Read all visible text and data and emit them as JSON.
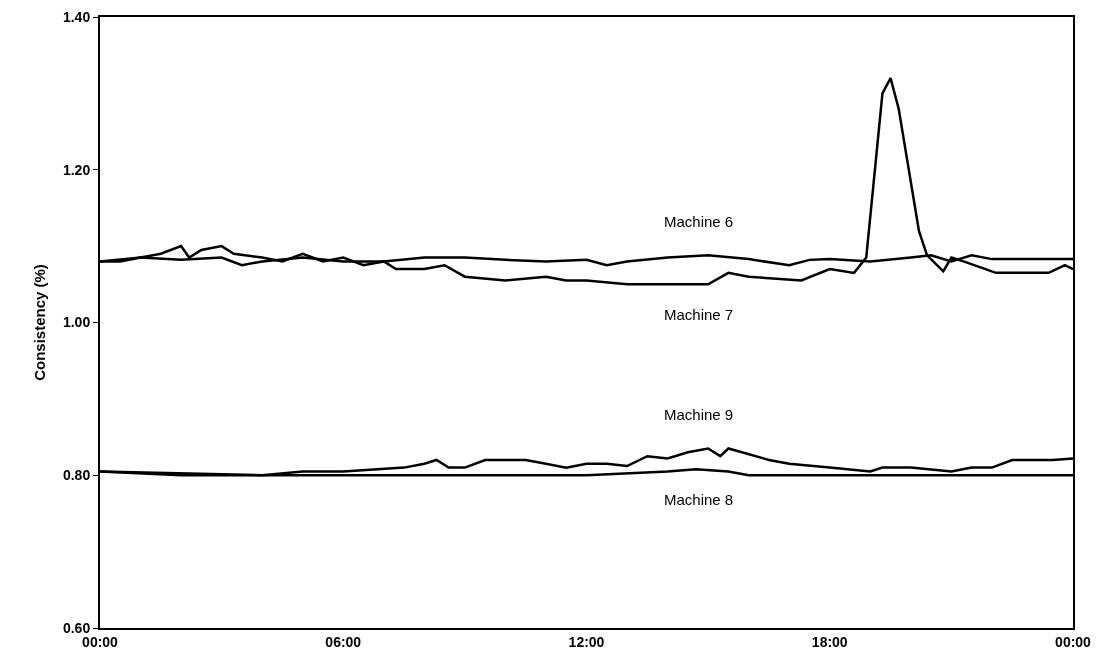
{
  "chart_data": {
    "type": "line",
    "ylabel": "Consistency (%)",
    "xlim": [
      0,
      24
    ],
    "xticks": [
      {
        "value": 0,
        "label": "00:00"
      },
      {
        "value": 6,
        "label": "06:00"
      },
      {
        "value": 12,
        "label": "12:00"
      },
      {
        "value": 18,
        "label": "18:00"
      },
      {
        "value": 24,
        "label": "00:00"
      }
    ],
    "ylim": [
      0.6,
      1.4
    ],
    "yticks": [
      {
        "value": 0.6,
        "label": "0.60"
      },
      {
        "value": 0.8,
        "label": "0.80"
      },
      {
        "value": 1.0,
        "label": "1.00"
      },
      {
        "value": 1.2,
        "label": "1.20"
      },
      {
        "value": 1.4,
        "label": "1.40"
      }
    ],
    "grid": false,
    "legend": false,
    "marker": "none",
    "line_style": "solid",
    "series": [
      {
        "name": "Machine 6",
        "color": "#000000",
        "x": [
          0,
          1,
          2,
          3,
          3.5,
          4,
          5,
          6,
          7,
          8,
          9,
          10,
          11,
          12,
          12.5,
          13,
          14,
          15,
          16,
          17,
          17.5,
          18,
          19,
          20,
          20.5,
          21,
          21.5,
          22,
          23,
          24
        ],
        "values": [
          1.08,
          1.085,
          1.082,
          1.085,
          1.075,
          1.08,
          1.085,
          1.08,
          1.08,
          1.085,
          1.085,
          1.082,
          1.08,
          1.082,
          1.075,
          1.08,
          1.085,
          1.088,
          1.083,
          1.075,
          1.082,
          1.083,
          1.08,
          1.085,
          1.088,
          1.08,
          1.088,
          1.083,
          1.083,
          1.083
        ]
      },
      {
        "name": "Machine 7",
        "color": "#000000",
        "x": [
          0,
          0.5,
          1,
          1.5,
          2,
          2.2,
          2.5,
          3,
          3.3,
          4,
          4.5,
          5,
          5.5,
          6,
          6.5,
          7,
          7.3,
          8,
          8.5,
          9,
          10,
          11,
          11.5,
          12,
          13,
          14,
          15,
          15.5,
          16,
          17.3,
          18,
          18.6,
          18.9,
          19.3,
          19.5,
          19.7,
          20.2,
          20.4,
          20.8,
          21,
          21.3,
          22.1,
          23.4,
          23.8,
          24
        ],
        "values": [
          1.08,
          1.08,
          1.085,
          1.09,
          1.1,
          1.085,
          1.095,
          1.1,
          1.09,
          1.085,
          1.08,
          1.09,
          1.08,
          1.085,
          1.075,
          1.08,
          1.07,
          1.07,
          1.075,
          1.06,
          1.055,
          1.06,
          1.055,
          1.055,
          1.05,
          1.05,
          1.05,
          1.065,
          1.06,
          1.055,
          1.07,
          1.065,
          1.085,
          1.3,
          1.32,
          1.28,
          1.12,
          1.088,
          1.067,
          1.085,
          1.08,
          1.065,
          1.065,
          1.075,
          1.07
        ]
      },
      {
        "name": "Machine 9",
        "color": "#000000",
        "x": [
          0,
          4,
          5,
          6,
          7.5,
          8,
          8.3,
          8.6,
          9,
          9.5,
          10.5,
          11,
          11.5,
          12,
          12.5,
          13,
          13.5,
          14,
          14.5,
          15,
          15.3,
          15.5,
          16.5,
          17,
          18,
          19,
          19.3,
          20,
          21,
          21.5,
          22,
          22.5,
          23,
          23.5,
          24
        ],
        "values": [
          0.805,
          0.8,
          0.805,
          0.805,
          0.81,
          0.815,
          0.82,
          0.81,
          0.81,
          0.82,
          0.82,
          0.815,
          0.81,
          0.815,
          0.815,
          0.812,
          0.825,
          0.822,
          0.83,
          0.835,
          0.825,
          0.835,
          0.82,
          0.815,
          0.81,
          0.805,
          0.81,
          0.81,
          0.805,
          0.81,
          0.81,
          0.82,
          0.82,
          0.82,
          0.822
        ]
      },
      {
        "name": "Machine 8",
        "color": "#000000",
        "x": [
          0,
          2,
          6,
          12,
          14,
          14.7,
          15.5,
          16,
          24
        ],
        "values": [
          0.805,
          0.8,
          0.8,
          0.8,
          0.805,
          0.808,
          0.805,
          0.8,
          0.8
        ]
      }
    ]
  }
}
